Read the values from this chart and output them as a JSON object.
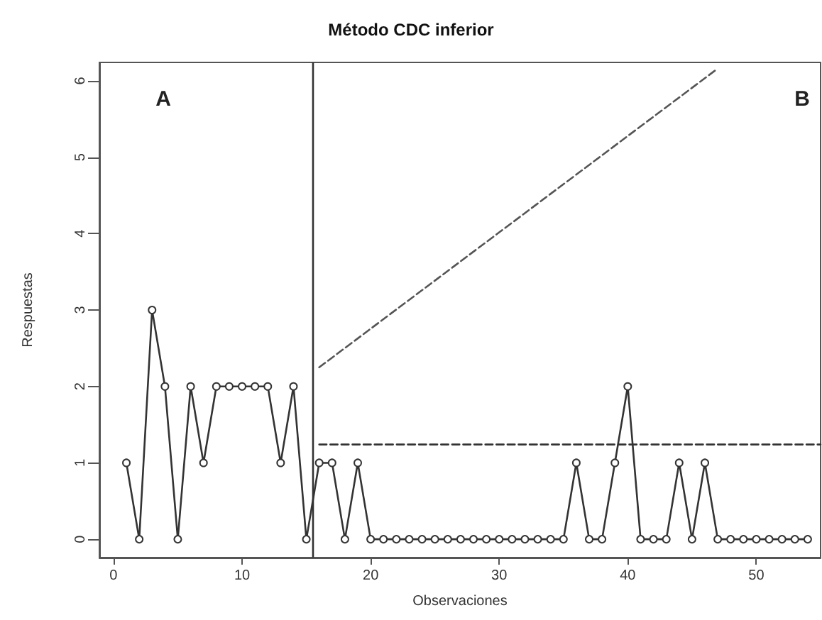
{
  "chart_data": {
    "type": "line",
    "title": "Método CDC inferior",
    "xlabel": "Observaciones",
    "ylabel": "Respuestas",
    "xlim": [
      -1.1,
      55
    ],
    "ylim": [
      -0.24,
      6.24
    ],
    "xticks": [
      0,
      10,
      20,
      30,
      40,
      50
    ],
    "yticks": [
      0,
      1,
      2,
      3,
      4,
      5,
      6
    ],
    "grid": false,
    "marker": "circle",
    "line_style": "solid",
    "series": [
      {
        "color": "#333333",
        "x": [
          1,
          2,
          3,
          4,
          5,
          6,
          7,
          8,
          9,
          10,
          11,
          12,
          13,
          14,
          15,
          16,
          17,
          18,
          19,
          20,
          21,
          22,
          23,
          24,
          25,
          26,
          27,
          28,
          29,
          30,
          31,
          32,
          33,
          34,
          35,
          36,
          37,
          38,
          39,
          40,
          41,
          42,
          43,
          44,
          45,
          46,
          47,
          48,
          49,
          50,
          51,
          52,
          53,
          54
        ],
        "values": [
          1,
          0,
          3,
          2,
          0,
          2,
          1,
          2,
          2,
          2,
          2,
          2,
          1,
          2,
          0,
          1,
          1,
          0,
          1,
          0,
          0,
          0,
          0,
          0,
          0,
          0,
          0,
          0,
          0,
          0,
          0,
          0,
          0,
          0,
          0,
          1,
          0,
          0,
          1,
          2,
          0,
          0,
          0,
          1,
          0,
          1,
          0,
          0,
          0,
          0,
          0,
          0,
          0,
          0
        ]
      },
      {
        "color": "#555555",
        "x": [
          16,
          47
        ],
        "values": [
          2.25,
          6.16
        ],
        "line_style": "dashed",
        "marker": "none"
      },
      {
        "color": "#333333",
        "x": [
          16,
          55
        ],
        "values": [
          1.24,
          1.24
        ],
        "line_style": "dashed",
        "marker": "none"
      }
    ],
    "ref_lines": [
      {
        "axis": "x",
        "value": 15.5,
        "color": "#333333",
        "line_style": "solid"
      }
    ],
    "annotations": [
      "A",
      "B"
    ]
  }
}
